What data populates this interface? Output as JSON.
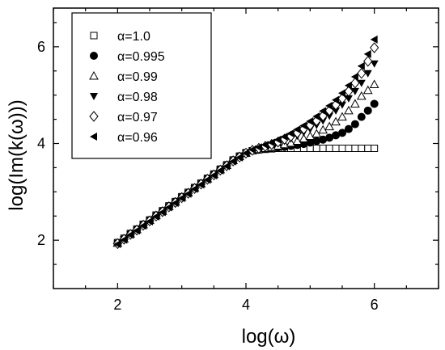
{
  "chart_data": {
    "type": "scatter",
    "xlabel": "log(ω)",
    "ylabel": "log(Im(k(ω)))",
    "xlim": [
      1.0,
      7.0
    ],
    "ylim": [
      1.0,
      6.8
    ],
    "x_ticks": [
      2,
      4,
      6
    ],
    "y_ticks": [
      2,
      4,
      6
    ],
    "x_tick_labels": [
      "2",
      "4",
      "6"
    ],
    "y_tick_labels": [
      "2",
      "4",
      "6"
    ],
    "grid": false,
    "legend_position": "top-left",
    "x": [
      2.0,
      2.1,
      2.2,
      2.3,
      2.4,
      2.5,
      2.6,
      2.7,
      2.8,
      2.9,
      3.0,
      3.1,
      3.2,
      3.3,
      3.4,
      3.5,
      3.6,
      3.7,
      3.8,
      3.9,
      4.0,
      4.1,
      4.2,
      4.3,
      4.4,
      4.5,
      4.6,
      4.7,
      4.8,
      4.9,
      5.0,
      5.1,
      5.2,
      5.3,
      5.4,
      5.5,
      5.6,
      5.7,
      5.8,
      5.9,
      6.0
    ],
    "series": [
      {
        "name": "α=1.0",
        "marker": "square-open",
        "values": [
          1.95,
          2.04,
          2.14,
          2.23,
          2.33,
          2.42,
          2.52,
          2.61,
          2.71,
          2.8,
          2.9,
          2.99,
          3.09,
          3.18,
          3.28,
          3.37,
          3.47,
          3.56,
          3.66,
          3.74,
          3.81,
          3.85,
          3.87,
          3.88,
          3.89,
          3.9,
          3.9,
          3.9,
          3.9,
          3.9,
          3.9,
          3.9,
          3.9,
          3.9,
          3.9,
          3.9,
          3.9,
          3.9,
          3.9,
          3.9,
          3.9
        ]
      },
      {
        "name": "α=0.995",
        "marker": "circle-filled",
        "values": [
          1.94,
          2.03,
          2.13,
          2.22,
          2.32,
          2.41,
          2.51,
          2.6,
          2.7,
          2.79,
          2.89,
          2.98,
          3.08,
          3.17,
          3.27,
          3.36,
          3.46,
          3.55,
          3.65,
          3.73,
          3.8,
          3.85,
          3.87,
          3.89,
          3.9,
          3.92,
          3.93,
          3.95,
          3.97,
          3.99,
          4.02,
          4.05,
          4.08,
          4.12,
          4.17,
          4.22,
          4.3,
          4.4,
          4.55,
          4.68,
          4.82
        ]
      },
      {
        "name": "α=0.99",
        "marker": "triangle-up-open",
        "values": [
          1.94,
          2.03,
          2.13,
          2.22,
          2.32,
          2.41,
          2.51,
          2.6,
          2.7,
          2.79,
          2.89,
          2.98,
          3.08,
          3.17,
          3.27,
          3.36,
          3.46,
          3.55,
          3.65,
          3.73,
          3.8,
          3.85,
          3.88,
          3.9,
          3.92,
          3.95,
          3.98,
          4.01,
          4.05,
          4.1,
          4.15,
          4.2,
          4.28,
          4.35,
          4.45,
          4.55,
          4.68,
          4.82,
          4.98,
          5.1,
          5.22
        ]
      },
      {
        "name": "α=0.98",
        "marker": "triangle-down-filled",
        "values": [
          1.93,
          2.02,
          2.12,
          2.21,
          2.31,
          2.4,
          2.5,
          2.59,
          2.69,
          2.78,
          2.88,
          2.97,
          3.07,
          3.16,
          3.26,
          3.35,
          3.45,
          3.54,
          3.64,
          3.72,
          3.8,
          3.85,
          3.89,
          3.92,
          3.96,
          4.0,
          4.05,
          4.1,
          4.16,
          4.23,
          4.3,
          4.38,
          4.47,
          4.57,
          4.68,
          4.8,
          4.93,
          5.08,
          5.25,
          5.45,
          5.65
        ]
      },
      {
        "name": "α=0.97",
        "marker": "diamond-open",
        "values": [
          1.93,
          2.02,
          2.12,
          2.21,
          2.31,
          2.4,
          2.5,
          2.59,
          2.69,
          2.78,
          2.88,
          2.97,
          3.07,
          3.16,
          3.26,
          3.35,
          3.45,
          3.54,
          3.64,
          3.72,
          3.8,
          3.86,
          3.9,
          3.94,
          3.98,
          4.03,
          4.09,
          4.15,
          4.22,
          4.3,
          4.38,
          4.47,
          4.57,
          4.68,
          4.8,
          4.93,
          5.08,
          5.25,
          5.45,
          5.7,
          5.98
        ]
      },
      {
        "name": "α=0.96",
        "marker": "triangle-left-filled",
        "values": [
          1.92,
          2.01,
          2.11,
          2.2,
          2.3,
          2.39,
          2.49,
          2.58,
          2.68,
          2.77,
          2.87,
          2.96,
          3.06,
          3.15,
          3.25,
          3.34,
          3.44,
          3.53,
          3.63,
          3.71,
          3.8,
          3.87,
          3.92,
          3.97,
          4.02,
          4.08,
          4.14,
          4.21,
          4.29,
          4.37,
          4.46,
          4.56,
          4.67,
          4.78,
          4.9,
          5.04,
          5.2,
          5.38,
          5.6,
          5.85,
          6.15
        ]
      }
    ]
  }
}
